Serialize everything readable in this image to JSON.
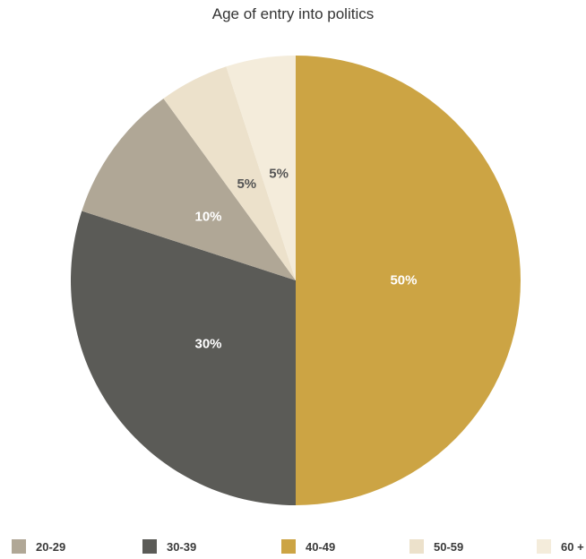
{
  "chart_data": {
    "type": "pie",
    "title": "Age of entry into politics",
    "categories": [
      "20-29",
      "30-39",
      "40-49",
      "50-59",
      "60 +"
    ],
    "values": [
      10,
      30,
      50,
      5,
      5
    ],
    "value_labels": [
      "10%",
      "30%",
      "50%",
      "5%",
      "5%"
    ],
    "colors": [
      "#b0a796",
      "#5b5b57",
      "#cca444",
      "#ece1cb",
      "#f4ecdb"
    ],
    "label_colors": [
      "#ffffff",
      "#ffffff",
      "#ffffff",
      "#555555",
      "#555555"
    ],
    "draw_order": [
      2,
      1,
      0,
      3,
      4
    ],
    "start": "12 o'clock",
    "direction": "clockwise",
    "legend_position": "bottom"
  }
}
